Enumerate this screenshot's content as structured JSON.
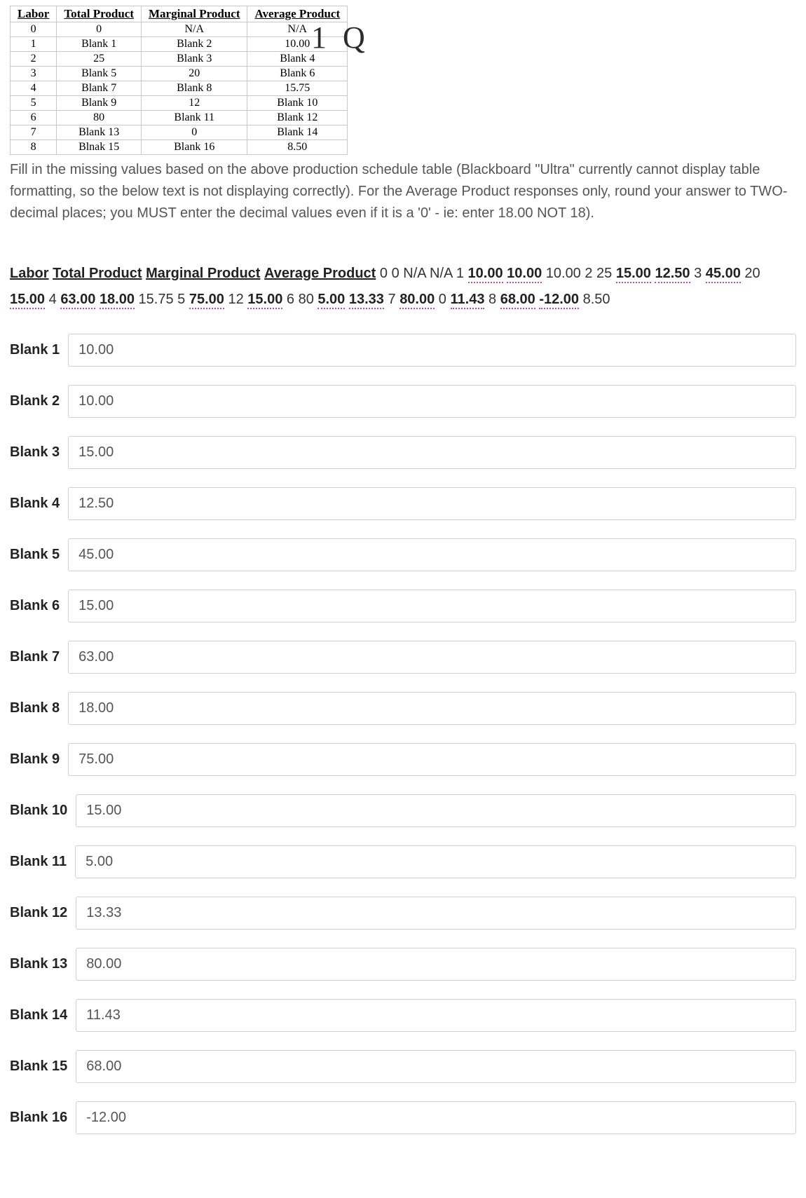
{
  "table": {
    "headers": [
      "Labor",
      "Total Product",
      "Marginal Product",
      "Average Product"
    ],
    "rows": [
      [
        "0",
        "0",
        "N/A",
        "N/A"
      ],
      [
        "1",
        "Blank 1",
        "Blank 2",
        "10.00"
      ],
      [
        "2",
        "25",
        "Blank 3",
        "Blank 4"
      ],
      [
        "3",
        "Blank 5",
        "20",
        "Blank 6"
      ],
      [
        "4",
        "Blank 7",
        "Blank 8",
        "15.75"
      ],
      [
        "5",
        "Blank 9",
        "12",
        "Blank 10"
      ],
      [
        "6",
        "80",
        "Blank 11",
        "Blank 12"
      ],
      [
        "7",
        "Blank 13",
        "0",
        "Blank 14"
      ],
      [
        "8",
        "Blnak 15",
        "Blank 16",
        "8.50"
      ]
    ]
  },
  "annotation": "1 Q",
  "instructions": "Fill in the missing values based on the above production schedule table (Blackboard \"Ultra\" currently cannot display table formatting, so the below text is not displaying correctly). For the Average Product responses only, round your answer to TWO-decimal places; you MUST enter the decimal values even if it is a '0' - ie: enter 18.00 NOT 18).",
  "answer_line": {
    "headers": [
      "Labor",
      "Total Product",
      "Marginal Product",
      "Average Product"
    ],
    "tokens": [
      {
        "t": "plain",
        "v": "0 0 N/A N/A 1 "
      },
      {
        "t": "val",
        "v": "10.00"
      },
      {
        "t": "plain",
        "v": " "
      },
      {
        "t": "val",
        "v": "10.00"
      },
      {
        "t": "plain",
        "v": " 10.00 2 25 "
      },
      {
        "t": "val",
        "v": "15.00"
      },
      {
        "t": "plain",
        "v": " "
      },
      {
        "t": "val",
        "v": "12.50"
      },
      {
        "t": "plain",
        "v": " 3 "
      },
      {
        "t": "val",
        "v": "45.00"
      },
      {
        "t": "plain",
        "v": " 20 "
      },
      {
        "t": "val",
        "v": "15.00"
      },
      {
        "t": "plain",
        "v": " 4 "
      },
      {
        "t": "val",
        "v": "63.00"
      },
      {
        "t": "plain",
        "v": " "
      },
      {
        "t": "val",
        "v": "18.00"
      },
      {
        "t": "plain",
        "v": " 15.75 5 "
      },
      {
        "t": "val",
        "v": "75.00"
      },
      {
        "t": "plain",
        "v": " 12 "
      },
      {
        "t": "val",
        "v": "15.00"
      },
      {
        "t": "plain",
        "v": " 6 80 "
      },
      {
        "t": "val",
        "v": "5.00"
      },
      {
        "t": "plain",
        "v": " "
      },
      {
        "t": "val",
        "v": "13.33"
      },
      {
        "t": "plain",
        "v": " 7 "
      },
      {
        "t": "val",
        "v": "80.00"
      },
      {
        "t": "plain",
        "v": " 0 "
      },
      {
        "t": "val",
        "v": "11.43"
      },
      {
        "t": "plain",
        "v": " 8 "
      },
      {
        "t": "val",
        "v": "68.00"
      },
      {
        "t": "plain",
        "v": " "
      },
      {
        "t": "val",
        "v": "-12.00"
      },
      {
        "t": "plain",
        "v": " 8.50"
      }
    ]
  },
  "blanks": [
    {
      "label": "Blank 1",
      "value": "10.00"
    },
    {
      "label": "Blank 2",
      "value": "10.00"
    },
    {
      "label": "Blank 3",
      "value": "15.00"
    },
    {
      "label": "Blank 4",
      "value": "12.50"
    },
    {
      "label": "Blank 5",
      "value": "45.00"
    },
    {
      "label": "Blank 6",
      "value": "15.00"
    },
    {
      "label": "Blank 7",
      "value": "63.00"
    },
    {
      "label": "Blank 8",
      "value": "18.00"
    },
    {
      "label": "Blank 9",
      "value": "75.00"
    },
    {
      "label": "Blank 10",
      "value": "15.00"
    },
    {
      "label": "Blank 11",
      "value": "5.00"
    },
    {
      "label": "Blank 12",
      "value": "13.33"
    },
    {
      "label": "Blank 13",
      "value": "80.00"
    },
    {
      "label": "Blank 14",
      "value": "11.43"
    },
    {
      "label": "Blank 15",
      "value": "68.00"
    },
    {
      "label": "Blank 16",
      "value": "-12.00"
    }
  ]
}
